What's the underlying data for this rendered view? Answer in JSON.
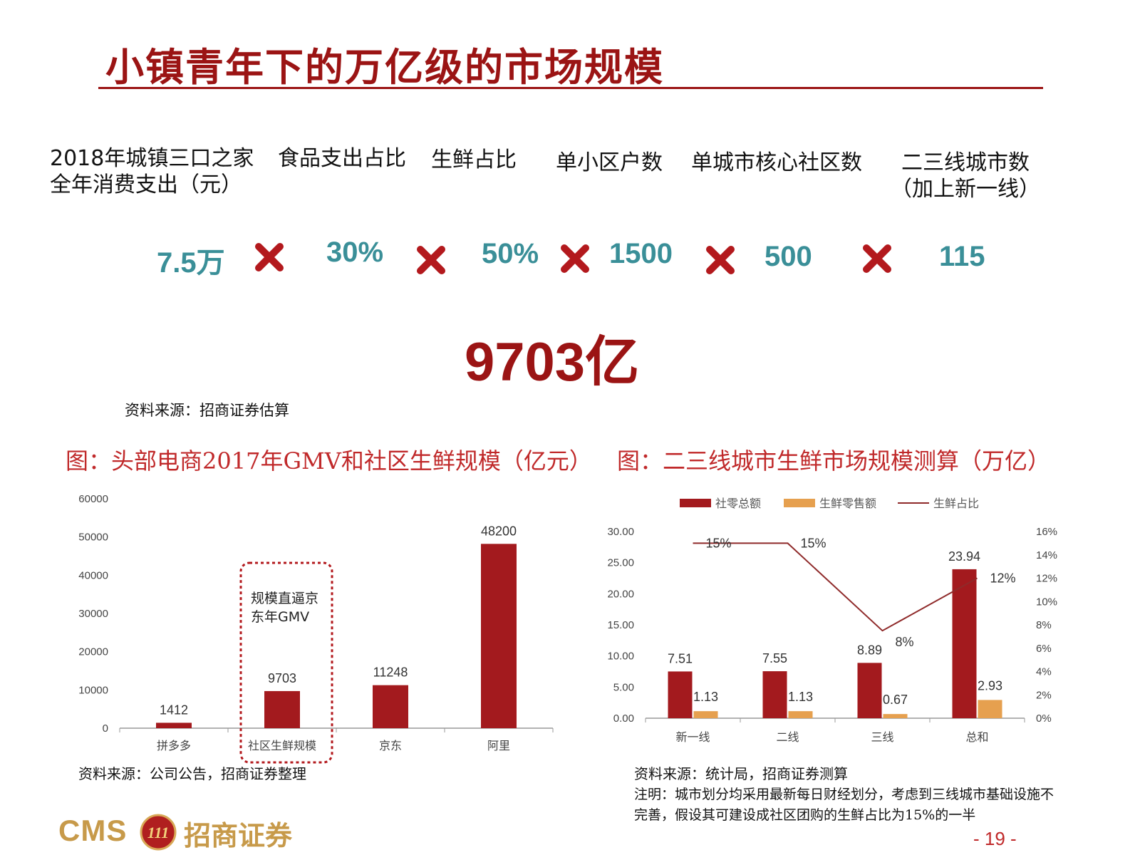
{
  "title": "小镇青年下的万亿级的市场规模",
  "factors": [
    {
      "label_lines": [
        "2018年城镇三口之家",
        "全年消费支出（元）"
      ],
      "value": "7.5万"
    },
    {
      "label_lines": [
        "食品支出占比"
      ],
      "value": "30%"
    },
    {
      "label_lines": [
        "生鲜占比"
      ],
      "value": "50%"
    },
    {
      "label_lines": [
        "单小区户数"
      ],
      "value": "1500"
    },
    {
      "label_lines": [
        "单城市核心社区数"
      ],
      "value": "500"
    },
    {
      "label_lines": [
        "二三线城市数",
        "（加上新一线）"
      ],
      "value": "115"
    }
  ],
  "operator_icon": "times-icon",
  "total": "9703亿",
  "source_top": "资料来源：招商证券估算",
  "figure_left_title": "图：头部电商2017年GMV和社区生鲜规模（亿元）",
  "figure_right_title": "图：二三线城市生鲜市场规模测算（万亿）",
  "chart_data": [
    {
      "type": "bar",
      "categories": [
        "拼多多",
        "社区生鲜规模",
        "京东",
        "阿里"
      ],
      "values": [
        1412,
        9703,
        11248,
        48200
      ],
      "ylim": [
        0,
        60000
      ],
      "yticks": [
        "0",
        "10000",
        "20000",
        "30000",
        "40000",
        "50000",
        "60000"
      ],
      "data_labels": [
        "1412",
        "9703",
        "11248",
        "48200"
      ],
      "color": "#a31a1e",
      "annotation": [
        "规模直逼京",
        "东年GMV"
      ],
      "annotation_target": "社区生鲜规模",
      "grid": false
    },
    {
      "type": "bar",
      "categories": [
        "新一线",
        "二线",
        "三线",
        "总和"
      ],
      "series": [
        {
          "name": "社零总额",
          "values": [
            7.51,
            7.55,
            8.89,
            23.94
          ],
          "labels": [
            "7.51",
            "7.55",
            "8.89",
            "23.94"
          ],
          "color": "#a31a1e"
        },
        {
          "name": "生鲜零售额",
          "values": [
            1.13,
            1.13,
            0.67,
            2.93
          ],
          "labels": [
            "1.13",
            "1.13",
            "0.67",
            "2.93"
          ],
          "color": "#e6a04f"
        },
        {
          "name": "生鲜占比",
          "type": "line",
          "axis": "right",
          "values": [
            15,
            15,
            7.5,
            12
          ],
          "labels": [
            "15%",
            "15%",
            "8%",
            "12%"
          ],
          "color": "#8f2a2a"
        }
      ],
      "ylim": [
        0,
        30
      ],
      "yticks": [
        "0.00",
        "5.00",
        "10.00",
        "15.00",
        "20.00",
        "25.00",
        "30.00"
      ],
      "y2lim": [
        0,
        16
      ],
      "y2ticks": [
        "0%",
        "2%",
        "4%",
        "6%",
        "8%",
        "10%",
        "12%",
        "14%",
        "16%"
      ],
      "legend": "top",
      "grid": false
    }
  ],
  "source_left": "资料来源：公司公告，招商证券整理",
  "source_right": "资料来源：统计局，招商证券测算",
  "note_lines": [
    "注明：城市划分均采用最新每日财经划分，考虑到三线城市基础设施不",
    "完善，假设其可建设成社区团购的生鲜占比为15%的一半"
  ],
  "logo": {
    "latin": "CMS",
    "badge": "111",
    "chinese": "招商证券"
  },
  "page_number": "- 19 -"
}
